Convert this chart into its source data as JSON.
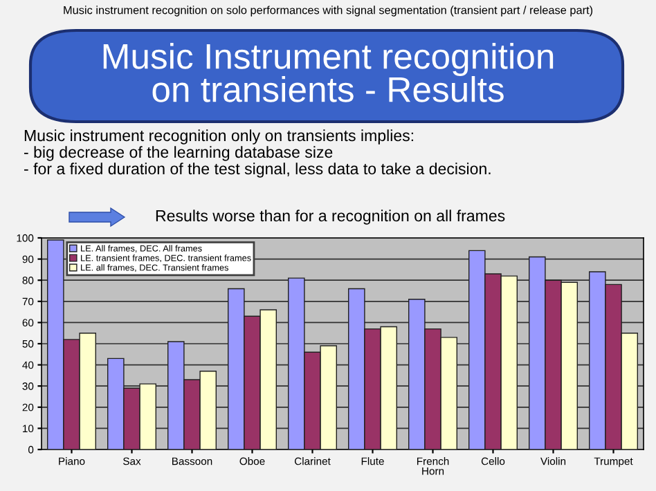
{
  "chart_data": {
    "type": "bar",
    "subtitle": "Music instrument recognition on solo performances with signal segmentation (transient part / release part)",
    "title": "Music Instrument recognition\non transients - Results",
    "annotations": [
      "Music instrument recognition only on transients implies:\n- big decrease of the learning database size\n- for a fixed duration of the test signal, less data to take a decision.",
      "Results worse than for a recognition on all frames"
    ],
    "categories": [
      "Piano",
      "Sax",
      "Bassoon",
      "Oboe",
      "Clarinet",
      "Flute",
      "French\nHorn",
      "Cello",
      "Violin",
      "Trumpet"
    ],
    "series": [
      {
        "name": "LE. All frames, DEC. All frames",
        "color": "#9999ff",
        "values": [
          99,
          43,
          51,
          76,
          81,
          76,
          71,
          94,
          91,
          84
        ]
      },
      {
        "name": "LE. transient frames, DEC. transient frames",
        "color": "#993366",
        "values": [
          52,
          29,
          33,
          63,
          46,
          57,
          57,
          83,
          80,
          78
        ]
      },
      {
        "name": "LE. all frames, DEC. Transient frames",
        "color": "#ffffcc",
        "values": [
          55,
          31,
          37,
          66,
          49,
          58,
          53,
          82,
          79,
          55
        ]
      }
    ],
    "ylim": [
      0,
      100
    ],
    "yticks": [
      0,
      10,
      20,
      30,
      40,
      50,
      60,
      70,
      80,
      90,
      100
    ],
    "grid": "y",
    "legend": "top left"
  }
}
